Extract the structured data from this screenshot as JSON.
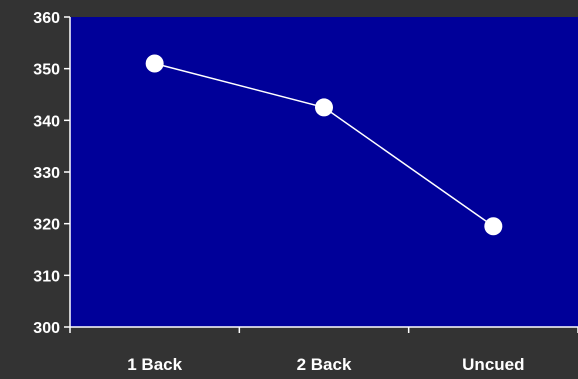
{
  "chart_data": {
    "type": "line",
    "categories": [
      "1 Back",
      "2 Back",
      "Uncued"
    ],
    "series": [
      {
        "values": [
          351,
          342.5,
          319.5
        ]
      }
    ],
    "title": "",
    "xlabel": "",
    "ylabel": "",
    "ylim": [
      300,
      360
    ],
    "yticks": [
      "300",
      "310",
      "320",
      "330",
      "340",
      "350",
      "360"
    ],
    "grid": false,
    "legend": "none"
  },
  "colors": {
    "page_background": "#333333",
    "plot_background": "#000099",
    "axis": "#ffffff",
    "line": "#ffffff",
    "marker": "#ffffff",
    "text": "#ffffff"
  }
}
